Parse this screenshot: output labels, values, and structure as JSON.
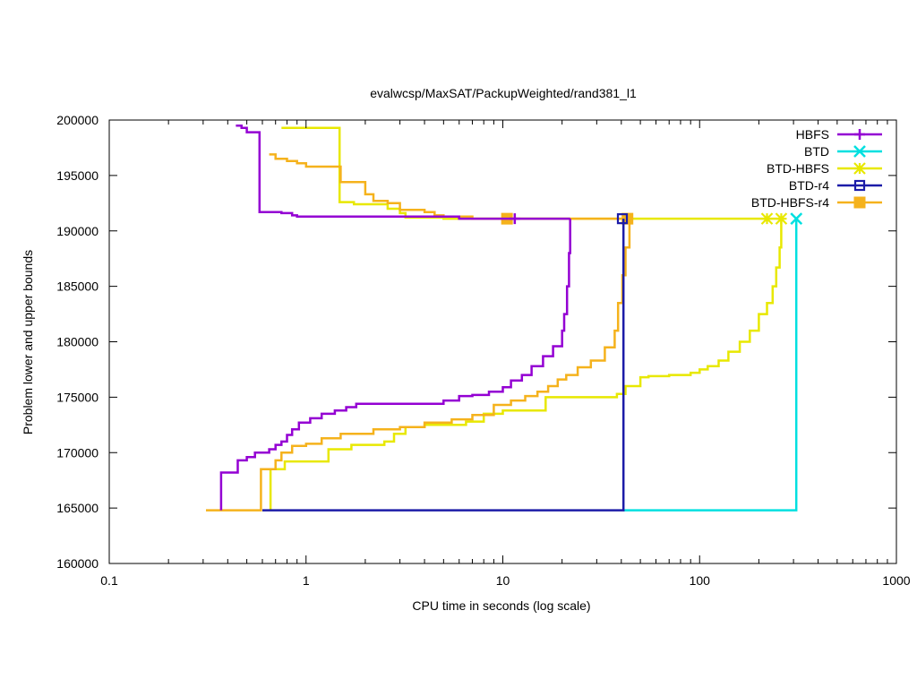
{
  "chart_data": {
    "type": "line",
    "title": "evalwcsp/MaxSAT/PackupWeighted/rand381_l1",
    "xlabel": "CPU time in seconds (log scale)",
    "ylabel": "Problem lower and upper bounds",
    "xscale": "log",
    "xlim": [
      0.1,
      1000
    ],
    "ylim": [
      160000,
      200000
    ],
    "x_ticks": [
      0.1,
      1,
      10,
      100,
      1000
    ],
    "x_tick_labels": [
      "0.1",
      "1",
      "10",
      "100",
      "1000"
    ],
    "y_ticks": [
      160000,
      165000,
      170000,
      175000,
      180000,
      185000,
      190000,
      195000,
      200000
    ],
    "y_tick_labels": [
      "160000",
      "165000",
      "170000",
      "175000",
      "180000",
      "185000",
      "190000",
      "195000",
      "200000"
    ],
    "legend_position": "top-right",
    "grid": false,
    "series": [
      {
        "name": "HBFS",
        "color": "#9400d3",
        "marker": "plus",
        "upper": [
          [
            0.44,
            199500
          ],
          [
            0.47,
            199300
          ],
          [
            0.5,
            198900
          ],
          [
            0.58,
            198900
          ],
          [
            0.58,
            191700
          ],
          [
            0.75,
            191600
          ],
          [
            0.85,
            191400
          ],
          [
            0.9,
            191300
          ],
          [
            1.0,
            191300
          ],
          [
            3.2,
            191300
          ],
          [
            6.0,
            191100
          ],
          [
            11.5,
            191100
          ],
          [
            22.0,
            191100
          ]
        ],
        "lower": [
          [
            0.37,
            164800
          ],
          [
            0.37,
            168200
          ],
          [
            0.45,
            168200
          ],
          [
            0.45,
            169300
          ],
          [
            0.5,
            169600
          ],
          [
            0.55,
            170000
          ],
          [
            0.65,
            170300
          ],
          [
            0.7,
            170700
          ],
          [
            0.75,
            171000
          ],
          [
            0.8,
            171600
          ],
          [
            0.85,
            172100
          ],
          [
            0.92,
            172700
          ],
          [
            1.05,
            173100
          ],
          [
            1.2,
            173500
          ],
          [
            1.4,
            173800
          ],
          [
            1.6,
            174100
          ],
          [
            1.8,
            174400
          ],
          [
            4.8,
            174400
          ],
          [
            5.0,
            174700
          ],
          [
            6.0,
            175100
          ],
          [
            7.0,
            175200
          ],
          [
            8.5,
            175500
          ],
          [
            10.0,
            175900
          ],
          [
            11.0,
            176500
          ],
          [
            12.5,
            177000
          ],
          [
            14.0,
            177800
          ],
          [
            16.0,
            178700
          ],
          [
            18.0,
            179600
          ],
          [
            20.0,
            181000
          ],
          [
            20.5,
            182500
          ],
          [
            21.2,
            185000
          ],
          [
            21.7,
            188000
          ],
          [
            22.0,
            191100
          ]
        ],
        "marker_points": [
          [
            11.5,
            191100
          ]
        ]
      },
      {
        "name": "BTD",
        "color": "#00e0e0",
        "marker": "x",
        "upper": [],
        "lower": [
          [
            41.0,
            164800
          ],
          [
            310.0,
            164800
          ],
          [
            310.0,
            191100
          ]
        ],
        "marker_points": [
          [
            310.0,
            191100
          ]
        ]
      },
      {
        "name": "BTD-HBFS",
        "color": "#e8e800",
        "marker": "star",
        "upper": [
          [
            0.75,
            199300
          ],
          [
            1.4,
            199300
          ],
          [
            1.48,
            198900
          ],
          [
            1.48,
            192600
          ],
          [
            1.7,
            192600
          ],
          [
            1.75,
            192400
          ],
          [
            2.5,
            192400
          ],
          [
            2.6,
            192000
          ],
          [
            3.0,
            191600
          ],
          [
            3.2,
            191200
          ],
          [
            5.0,
            191100
          ],
          [
            260.0,
            191100
          ]
        ],
        "lower": [
          [
            0.66,
            164800
          ],
          [
            0.66,
            168500
          ],
          [
            0.78,
            169200
          ],
          [
            1.2,
            169200
          ],
          [
            1.3,
            170300
          ],
          [
            1.7,
            170700
          ],
          [
            2.5,
            171000
          ],
          [
            2.8,
            171700
          ],
          [
            3.2,
            172300
          ],
          [
            4.0,
            172500
          ],
          [
            5.0,
            172500
          ],
          [
            6.5,
            172800
          ],
          [
            8.0,
            173500
          ],
          [
            10.0,
            173800
          ],
          [
            15.0,
            173800
          ],
          [
            16.5,
            175000
          ],
          [
            22.0,
            175000
          ],
          [
            38.0,
            175300
          ],
          [
            42.0,
            176000
          ],
          [
            50.0,
            176800
          ],
          [
            55.0,
            176900
          ],
          [
            70.0,
            177000
          ],
          [
            90.0,
            177200
          ],
          [
            100.0,
            177500
          ],
          [
            110.0,
            177800
          ],
          [
            125.0,
            178300
          ],
          [
            140.0,
            179100
          ],
          [
            160.0,
            180000
          ],
          [
            180.0,
            181000
          ],
          [
            200.0,
            182500
          ],
          [
            220.0,
            183500
          ],
          [
            235.0,
            185000
          ],
          [
            245.0,
            186700
          ],
          [
            255.0,
            188500
          ],
          [
            260.0,
            191100
          ]
        ],
        "marker_points": [
          [
            220.0,
            191100
          ],
          [
            260.0,
            191100
          ]
        ]
      },
      {
        "name": "BTD-r4",
        "color": "#1c1ca8",
        "marker": "square",
        "upper": [],
        "lower": [
          [
            0.6,
            164800
          ],
          [
            41.0,
            164800
          ],
          [
            41.0,
            191100
          ]
        ],
        "marker_points": [
          [
            40.5,
            191100
          ]
        ]
      },
      {
        "name": "BTD-HBFS-r4",
        "color": "#f5b21c",
        "marker": "filled-square",
        "upper": [
          [
            0.65,
            196900
          ],
          [
            0.7,
            196500
          ],
          [
            0.8,
            196300
          ],
          [
            0.9,
            196100
          ],
          [
            1.0,
            195800
          ],
          [
            1.5,
            195600
          ],
          [
            1.5,
            194400
          ],
          [
            1.9,
            194400
          ],
          [
            2.0,
            193300
          ],
          [
            2.2,
            192700
          ],
          [
            2.6,
            192500
          ],
          [
            3.0,
            191900
          ],
          [
            4.0,
            191700
          ],
          [
            4.5,
            191400
          ],
          [
            5.0,
            191300
          ],
          [
            6.5,
            191300
          ],
          [
            7.0,
            191100
          ],
          [
            10.5,
            191100
          ],
          [
            44.0,
            191100
          ]
        ],
        "lower": [
          [
            0.31,
            164800
          ],
          [
            0.59,
            164800
          ],
          [
            0.59,
            168500
          ],
          [
            0.7,
            169300
          ],
          [
            0.75,
            170000
          ],
          [
            0.85,
            170600
          ],
          [
            1.0,
            170800
          ],
          [
            1.2,
            171300
          ],
          [
            1.5,
            171700
          ],
          [
            2.2,
            172100
          ],
          [
            3.0,
            172300
          ],
          [
            4.0,
            172700
          ],
          [
            5.5,
            173000
          ],
          [
            7.0,
            173400
          ],
          [
            9.0,
            174300
          ],
          [
            11.0,
            174700
          ],
          [
            13.0,
            175100
          ],
          [
            15.0,
            175500
          ],
          [
            17.0,
            176000
          ],
          [
            19.0,
            176600
          ],
          [
            21.0,
            177000
          ],
          [
            24.0,
            177700
          ],
          [
            28.0,
            178300
          ],
          [
            33.0,
            179500
          ],
          [
            37.0,
            181000
          ],
          [
            38.5,
            183500
          ],
          [
            40.5,
            186000
          ],
          [
            42.0,
            188500
          ],
          [
            44.0,
            191100
          ]
        ],
        "marker_points": [
          [
            10.5,
            191100
          ],
          [
            43.0,
            191100
          ]
        ]
      }
    ]
  }
}
